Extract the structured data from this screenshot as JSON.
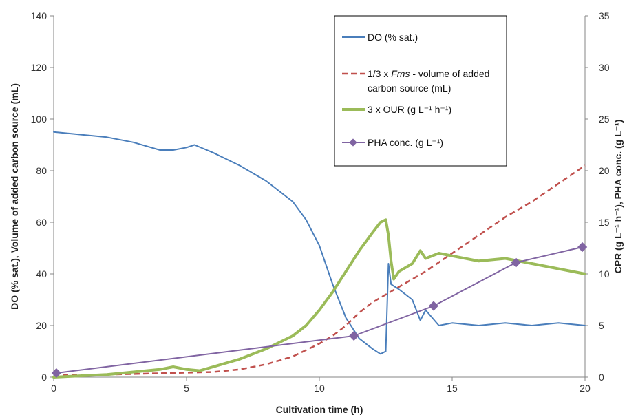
{
  "chart_data": {
    "type": "line",
    "xlabel": "Cultivation time (h)",
    "ylabel_left": "DO (% sat.), Volume of added carbon source (mL)",
    "ylabel_right": "CPR (g L⁻¹ h⁻¹), PHA conc. (g L⁻¹)",
    "xlim": [
      0,
      20
    ],
    "ylim_left": [
      0,
      140
    ],
    "ylim_right": [
      0,
      35
    ],
    "x_ticks": [
      "0",
      "5",
      "10",
      "15",
      "20"
    ],
    "y_ticks_left": [
      "0",
      "20",
      "40",
      "60",
      "80",
      "100",
      "120",
      "140"
    ],
    "y_ticks_right": [
      "0",
      "5",
      "10",
      "15",
      "20",
      "25",
      "30",
      "35"
    ],
    "grid": false,
    "legend_position": "top-right",
    "series": [
      {
        "name": "DO (% sat.)",
        "axis": "left",
        "color": "#4a7ebb",
        "style": "solid",
        "x": [
          0,
          1,
          2,
          3,
          4,
          4.5,
          5,
          5.3,
          6,
          7,
          8,
          9,
          9.5,
          10,
          10.5,
          11,
          11.5,
          12,
          12.3,
          12.5,
          12.6,
          12.7,
          13,
          13.5,
          13.8,
          14,
          14.5,
          15,
          16,
          17,
          18,
          19,
          20
        ],
        "y": [
          95,
          94,
          93,
          91,
          88,
          88,
          89,
          90,
          87,
          82,
          76,
          68,
          61,
          51,
          36,
          23,
          15,
          11,
          9,
          10,
          44,
          36,
          34,
          30,
          22,
          26,
          20,
          21,
          20,
          21,
          20,
          21,
          20
        ]
      },
      {
        "name": "1/3 x Fms - volume of added carbon source (mL)",
        "axis": "left",
        "color": "#c0504d",
        "style": "dashed",
        "x": [
          0,
          2,
          4,
          6,
          7,
          8,
          9,
          10,
          10.5,
          11,
          11.5,
          12,
          12.5,
          13,
          14,
          15,
          16,
          17,
          18,
          19,
          20
        ],
        "y": [
          1,
          1,
          1.5,
          2,
          3,
          5,
          8,
          13,
          16,
          20,
          25,
          29,
          32,
          35,
          41,
          48,
          55,
          62,
          68,
          75,
          82
        ]
      },
      {
        "name": "3 x OUR (g L⁻¹ h⁻¹)",
        "axis": "left",
        "color": "#9bbb59",
        "style": "solid",
        "x": [
          0,
          1,
          2,
          3,
          4,
          4.5,
          5,
          5.5,
          6,
          7,
          8,
          9,
          9.5,
          10,
          10.5,
          11,
          11.5,
          12,
          12.3,
          12.5,
          12.6,
          12.7,
          12.8,
          13,
          13.5,
          13.8,
          14,
          14.5,
          15,
          16,
          17,
          18,
          19,
          20
        ],
        "y": [
          0,
          0.5,
          1,
          2,
          3,
          4,
          3,
          2.5,
          4,
          7,
          11,
          16,
          20,
          26,
          33,
          41,
          49,
          56,
          60,
          61,
          55,
          45,
          38,
          41,
          44,
          49,
          46,
          48,
          47,
          45,
          46,
          44,
          42,
          40
        ]
      },
      {
        "name": "PHA conc. (g L⁻¹)",
        "axis": "right",
        "color": "#8064a2",
        "style": "solid-marker",
        "x": [
          0.1,
          11.3,
          14.3,
          17.4,
          19.9
        ],
        "y": [
          0.4,
          4,
          6.9,
          11.1,
          12.6
        ]
      }
    ],
    "legend": [
      "DO (% sat.)",
      "1/3 x Fms - volume of added carbon source (mL)",
      "3 x OUR (g L⁻¹ h⁻¹)",
      "PHA conc. (g L⁻¹)"
    ]
  }
}
